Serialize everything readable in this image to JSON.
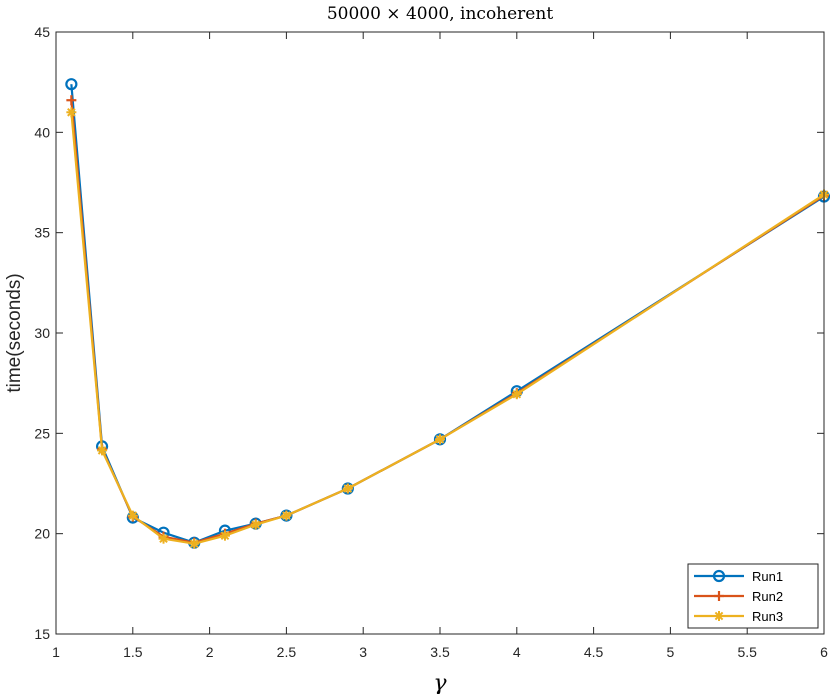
{
  "chart_data": {
    "type": "line",
    "title": "50000 × 4000, incoherent",
    "xlabel": "γ",
    "ylabel": "time(seconds)",
    "xlim": [
      1,
      6
    ],
    "ylim": [
      15,
      45
    ],
    "xticks": [
      1,
      1.5,
      2,
      2.5,
      3,
      3.5,
      4,
      4.5,
      5,
      5.5,
      6
    ],
    "xtick_labels": [
      "1",
      "1.5",
      "2",
      "2.5",
      "3",
      "3.5",
      "4",
      "4.5",
      "5",
      "5.5",
      "6"
    ],
    "yticks": [
      15,
      20,
      25,
      30,
      35,
      40,
      45
    ],
    "ytick_labels": [
      "15",
      "20",
      "25",
      "30",
      "35",
      "40",
      "45"
    ],
    "grid": false,
    "legend_position": "bottom-right",
    "x": [
      1.1,
      1.3,
      1.5,
      1.7,
      1.9,
      2.1,
      2.3,
      2.5,
      2.9,
      3.5,
      4.0,
      6.0
    ],
    "series": [
      {
        "name": "Run1",
        "color": "#0072BD",
        "marker": "circle",
        "values": [
          42.4,
          24.35,
          20.8,
          20.05,
          19.55,
          20.15,
          20.5,
          20.9,
          22.25,
          24.7,
          27.1,
          36.8
        ]
      },
      {
        "name": "Run2",
        "color": "#D95319",
        "marker": "plus",
        "values": [
          41.6,
          24.2,
          20.85,
          19.85,
          19.55,
          20.0,
          20.5,
          20.9,
          22.25,
          24.7,
          27.0,
          36.85
        ]
      },
      {
        "name": "Run3",
        "color": "#EDB120",
        "marker": "asterisk",
        "values": [
          41.0,
          24.15,
          20.9,
          19.75,
          19.5,
          19.9,
          20.45,
          20.9,
          22.25,
          24.7,
          26.95,
          36.9
        ]
      }
    ]
  }
}
